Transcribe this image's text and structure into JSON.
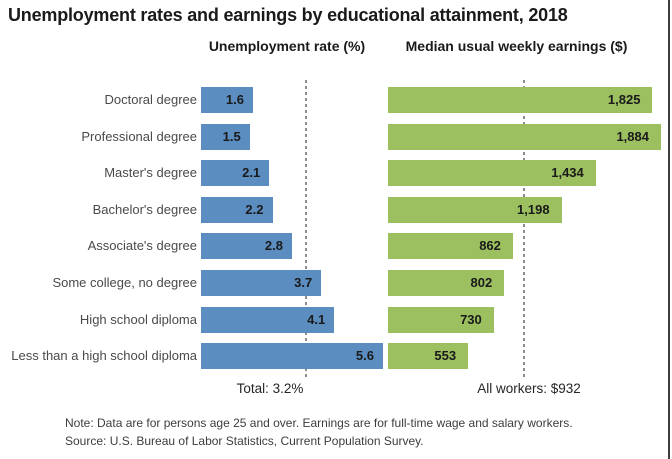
{
  "title": "Unemployment rates and earnings by educational attainment, 2018",
  "headers": {
    "left": "Unemployment rate (%)",
    "right": "Median usual weekly earnings ($)"
  },
  "footers": {
    "left": "Total: 3.2%",
    "right": "All workers: $932"
  },
  "note": "Note: Data are for persons age 25 and over. Earnings are for full-time wage and salary workers.",
  "source": "Source: U.S. Bureau of Labor Statistics, Current Population Survey.",
  "colors": {
    "unemployment_bar": "#5b8dc0",
    "earnings_bar": "#9cbf5f",
    "reference_line": "#8c8c8c"
  },
  "chart_data": {
    "type": "bar",
    "orientation": "horizontal",
    "title": "Unemployment rates and earnings by educational attainment, 2018",
    "categories": [
      "Doctoral degree",
      "Professional degree",
      "Master's degree",
      "Bachelor's degree",
      "Associate's degree",
      "Some college, no degree",
      "High school diploma",
      "Less than a high school diploma"
    ],
    "series": [
      {
        "name": "Unemployment rate (%)",
        "values": [
          1.6,
          1.5,
          2.1,
          2.2,
          2.8,
          3.7,
          4.1,
          5.6
        ],
        "value_labels": [
          "1.6",
          "1.5",
          "2.1",
          "2.2",
          "2.8",
          "3.7",
          "4.1",
          "5.6"
        ],
        "color": "#5b8dc0",
        "axis_range": [
          0,
          6.5
        ],
        "reference": {
          "label": "Total: 3.2%",
          "value": 3.2
        }
      },
      {
        "name": "Median usual weekly earnings ($)",
        "values": [
          1825,
          1884,
          1434,
          1198,
          862,
          802,
          730,
          553
        ],
        "value_labels": [
          "1,825",
          "1,884",
          "1,434",
          "1,198",
          "862",
          "802",
          "730",
          "553"
        ],
        "color": "#9cbf5f",
        "axis_range": [
          0,
          1960
        ],
        "reference": {
          "label": "All workers: $932",
          "value": 932
        }
      }
    ],
    "legend": "none",
    "grid": "off"
  }
}
